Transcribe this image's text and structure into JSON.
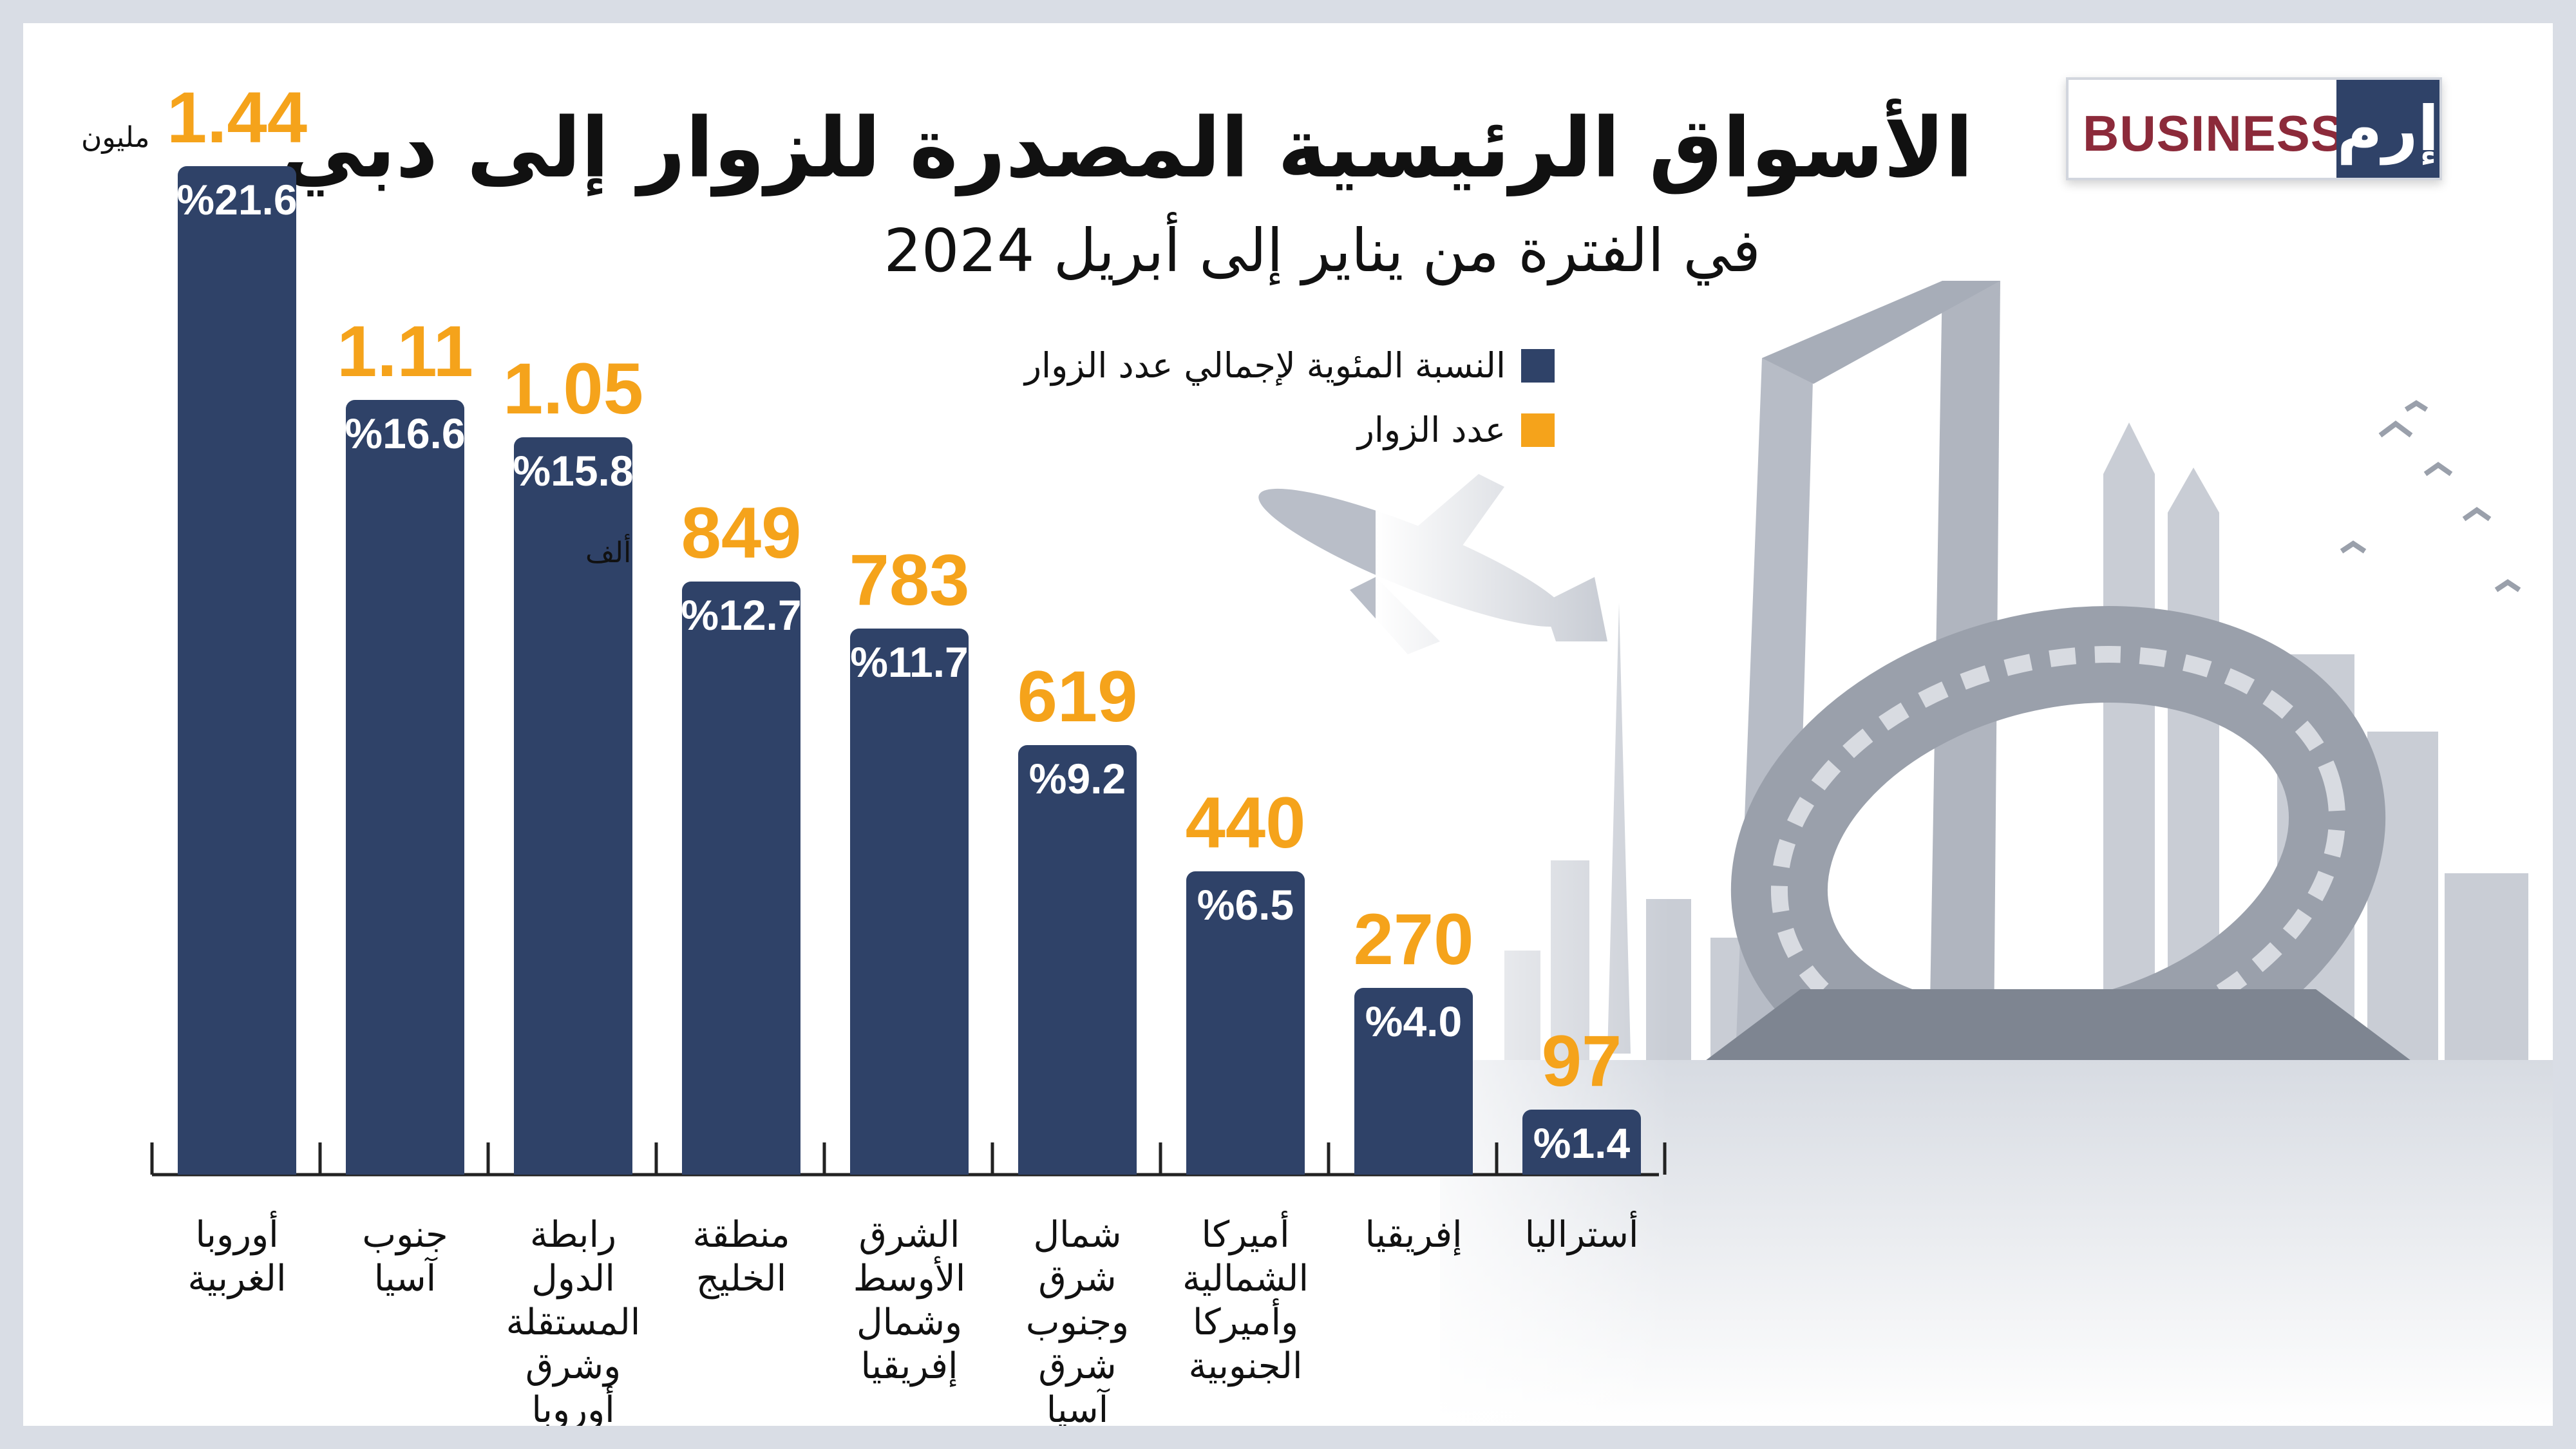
{
  "header": {
    "title": "الأسواق الرئيسية المصدرة للزوار إلى دبي",
    "subtitle": "في الفترة من يناير إلى أبريل 2024"
  },
  "logo": {
    "text": "BUSINESS",
    "mark": "إرم",
    "colors": {
      "text": "#8c2a3a",
      "box": "#2f4268"
    }
  },
  "legend": [
    {
      "label": "النسبة المئوية لإجمالي عدد الزوار",
      "color": "#2f4268"
    },
    {
      "label": "عدد الزوار",
      "color": "#f5a31b"
    }
  ],
  "chart_data": {
    "type": "bar",
    "title": "الأسواق الرئيسية المصدرة للزوار إلى دبي",
    "subtitle": "في الفترة من يناير إلى أبريل 2024",
    "categories": [
      "أوروبا الغربية",
      "جنوب آسيا",
      "رابطة الدول المستقلة وشرق أوروبا",
      "منطقة الخليج",
      "الشرق الأوسط وشمال إفريقيا",
      "شمال شرق وجنوب شرق آسيا",
      "أميركا الشمالية وأميركا الجنوبية",
      "إفريقيا",
      "أستراليا"
    ],
    "series": [
      {
        "name": "النسبة المئوية لإجمالي عدد الزوار",
        "color": "#2f4268",
        "values": [
          21.6,
          16.6,
          15.8,
          12.7,
          11.7,
          9.2,
          6.5,
          4.0,
          1.4
        ],
        "labels": [
          "%21.6",
          "%16.6",
          "%15.8",
          "%12.7",
          "%11.7",
          "%9.2",
          "%6.5",
          "%4.0",
          "%1.4"
        ]
      },
      {
        "name": "عدد الزوار",
        "color": "#f5a31b",
        "labels": [
          "1.44",
          "1.11",
          "1.05",
          "849",
          "783",
          "619",
          "440",
          "270",
          "97"
        ]
      }
    ],
    "unit_labels": {
      "millions": "مليون",
      "thousands": "ألف"
    },
    "ylim": [
      0,
      21.6
    ],
    "grid": false,
    "legend_position": "top-center"
  }
}
